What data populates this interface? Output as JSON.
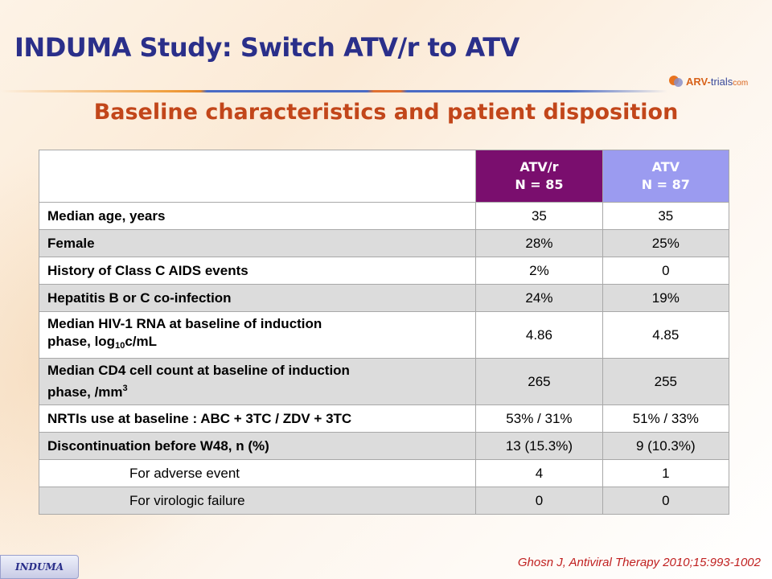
{
  "slide": {
    "title": "INDUMA Study: Switch ATV/r to ATV",
    "subtitle": "Baseline characteristics and patient disposition",
    "logo": {
      "part1": "ARV-",
      "part2": "trials",
      "part3": "com"
    },
    "footer_tag": "INDUMA",
    "citation": "Ghosn J, Antiviral Therapy 2010;15:993-1002"
  },
  "table": {
    "columns": [
      {
        "name": "ATV/r",
        "n": "N = 85"
      },
      {
        "name": "ATV",
        "n": "N = 87"
      }
    ],
    "rows": [
      {
        "label": "Median age, years",
        "atvr": "35",
        "atv": "35"
      },
      {
        "label": "Female",
        "atvr": "28%",
        "atv": "25%"
      },
      {
        "label": "History of Class C AIDS events",
        "atvr": "2%",
        "atv": "0"
      },
      {
        "label": "Hepatitis B or C co-infection",
        "atvr": "24%",
        "atv": "19%"
      },
      {
        "label_line1": "Median HIV-1 RNA at baseline of induction",
        "label_line2_pre": "phase, log",
        "label_line2_sub": "10",
        "label_line2_post": "c/mL",
        "atvr": "4.86",
        "atv": "4.85"
      },
      {
        "label_line1": "Median CD4 cell count at baseline of induction",
        "label_line2_pre": "phase, /mm",
        "label_line2_sup": "3",
        "atvr": "265",
        "atv": "255"
      },
      {
        "label": "NRTIs use at baseline : ABC + 3TC / ZDV + 3TC",
        "atvr": "53% / 31%",
        "atv": "51% / 33%"
      },
      {
        "label": "Discontinuation before W48, n (%)",
        "atvr": "13 (15.3%)",
        "atv": "9 (10.3%)"
      },
      {
        "label": "For adverse event",
        "atvr": "4",
        "atv": "1"
      },
      {
        "label": "For virologic failure",
        "atvr": "0",
        "atv": "0"
      }
    ]
  },
  "colors": {
    "title": "#2a2f8a",
    "subtitle": "#c2461a",
    "header_atvr": "#7a0e6e",
    "header_atv": "#9b9bf0",
    "row_alt": "#dcdcdc",
    "citation": "#c02020"
  }
}
